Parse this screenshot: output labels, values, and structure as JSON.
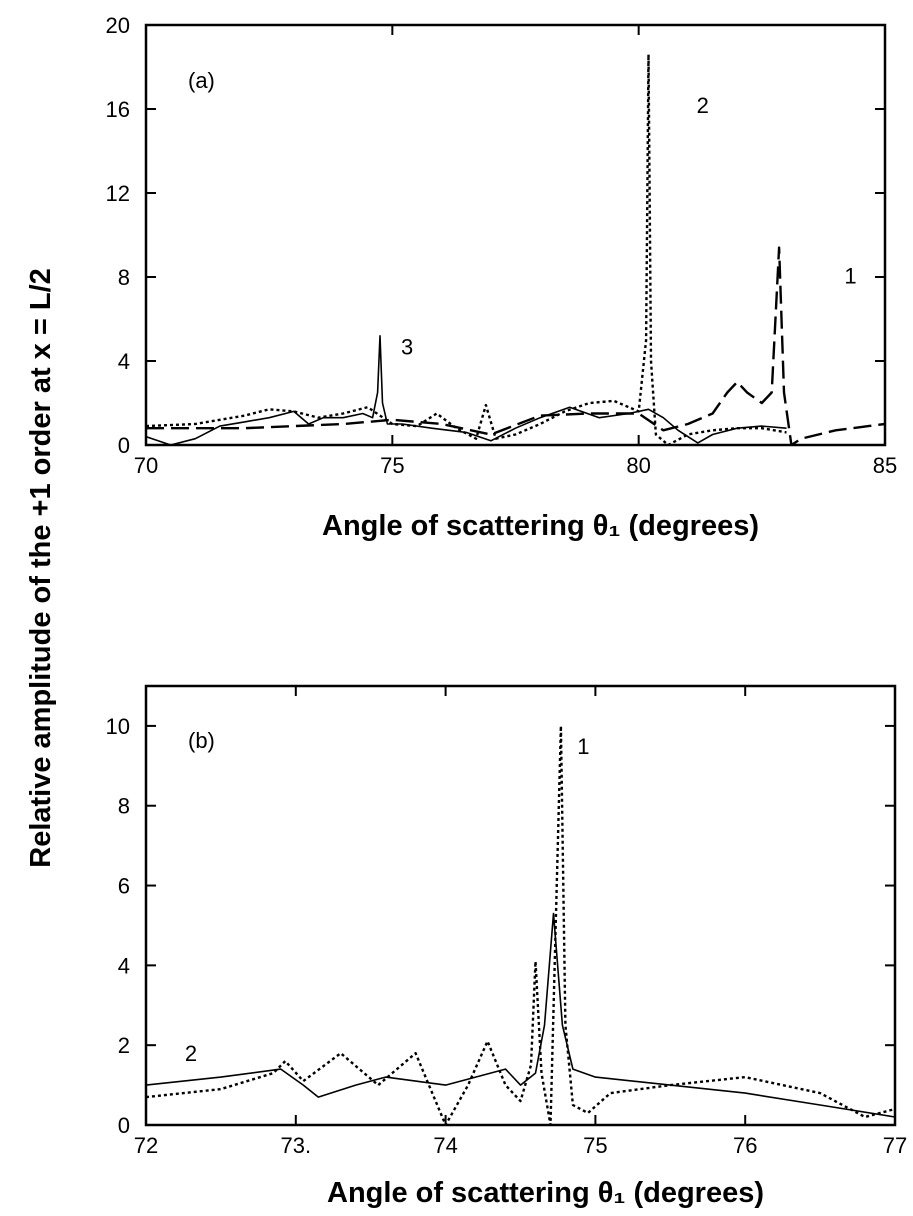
{
  "figure": {
    "ylabel": "Relative amplitude of the +1 order at x = L/2"
  },
  "chart_data": [
    {
      "type": "line",
      "panel_label": "(a)",
      "xlabel": "Angle of scattering θ₁ (degrees)",
      "xlim": [
        70,
        85
      ],
      "ylim": [
        0,
        20
      ],
      "x_ticks": [
        70,
        75,
        80,
        85
      ],
      "x_tick_labels": [
        "70",
        "75",
        "80",
        "85"
      ],
      "y_ticks": [
        0,
        4,
        8,
        12,
        16,
        20
      ],
      "y_tick_labels": [
        "0",
        "4",
        "8",
        "12",
        "16",
        "20"
      ],
      "grid": false,
      "series": [
        {
          "name": "3",
          "style": "solid",
          "x": [
            70,
            70.5,
            71,
            71.5,
            72,
            72.5,
            73,
            73.3,
            73.6,
            74,
            74.4,
            74.6,
            74.7,
            74.75,
            74.8,
            74.9,
            75.2,
            75.8,
            76.5,
            77,
            77.5,
            78,
            78.6,
            79.2,
            79.8,
            80.2,
            80.5,
            80.8,
            81.2,
            81.5,
            82,
            82.5,
            83
          ],
          "y": [
            0.4,
            0,
            0.3,
            0.9,
            1.1,
            1.3,
            1.6,
            1.0,
            1.3,
            1.3,
            1.5,
            1.3,
            2.5,
            5.2,
            2.0,
            1.0,
            1.0,
            0.8,
            0.6,
            0.2,
            0.8,
            1.3,
            1.8,
            1.3,
            1.5,
            1.7,
            1.3,
            0.7,
            0.1,
            0.5,
            0.8,
            0.9,
            0.8
          ]
        },
        {
          "name": "2",
          "style": "dotted",
          "x": [
            70,
            71,
            72,
            72.5,
            73,
            73.5,
            74,
            74.5,
            75,
            75.5,
            75.9,
            76.3,
            76.7,
            76.9,
            77.1,
            77.5,
            78,
            78.5,
            79,
            79.5,
            80,
            80.15,
            80.2,
            80.25,
            80.35,
            80.6,
            81,
            81.5,
            82,
            82.5,
            83
          ],
          "y": [
            0.9,
            1.0,
            1.4,
            1.7,
            1.6,
            1.3,
            1.5,
            1.8,
            1.0,
            0.9,
            1.5,
            0.8,
            0.3,
            1.9,
            0.3,
            0.5,
            1.0,
            1.6,
            2.0,
            2.1,
            1.6,
            5.0,
            18.6,
            4.0,
            0.5,
            0,
            0.5,
            0.7,
            0.8,
            0.8,
            0.6
          ]
        },
        {
          "name": "1",
          "style": "dashed",
          "x": [
            70,
            72,
            74,
            75,
            76,
            77,
            78,
            79,
            80,
            80.5,
            81,
            81.5,
            81.8,
            82,
            82.2,
            82.5,
            82.7,
            82.85,
            82.95,
            83.1,
            83.3,
            84,
            85
          ],
          "y": [
            0.8,
            0.8,
            1.0,
            1.2,
            1.0,
            0.5,
            1.4,
            1.5,
            1.5,
            0.7,
            1.0,
            1.5,
            2.5,
            3.0,
            2.5,
            2.0,
            2.5,
            9.4,
            2.5,
            0,
            0.3,
            0.7,
            1.0
          ]
        }
      ],
      "annotations": [
        {
          "text": "3",
          "x": 75.3,
          "y": 4.3
        },
        {
          "text": "2",
          "x": 81.3,
          "y": 15.8
        },
        {
          "text": "1",
          "x": 84.3,
          "y": 7.7
        }
      ]
    },
    {
      "type": "line",
      "panel_label": "(b)",
      "xlabel": "Angle of scattering θ₁ (degrees)",
      "xlim": [
        72,
        77
      ],
      "ylim": [
        0,
        11
      ],
      "x_ticks": [
        72,
        73,
        74,
        75,
        76,
        77
      ],
      "x_tick_labels": [
        "72",
        "73.",
        "74",
        "75",
        "76",
        "77"
      ],
      "y_ticks": [
        0,
        2,
        4,
        6,
        8,
        10
      ],
      "y_tick_labels": [
        "0",
        "2",
        "4",
        "6",
        "8",
        "10"
      ],
      "grid": false,
      "series": [
        {
          "name": "2",
          "style": "solid",
          "x": [
            72,
            72.5,
            72.9,
            73.05,
            73.15,
            73.4,
            73.6,
            73.8,
            74.0,
            74.2,
            74.4,
            74.5,
            74.6,
            74.66,
            74.72,
            74.78,
            74.85,
            75.0,
            75.5,
            76.0,
            76.5,
            77.0
          ],
          "y": [
            1.0,
            1.2,
            1.4,
            1.0,
            0.7,
            1.0,
            1.2,
            1.1,
            1.0,
            1.2,
            1.4,
            1.0,
            1.3,
            2.5,
            5.3,
            2.5,
            1.4,
            1.2,
            1.0,
            0.8,
            0.5,
            0.2
          ]
        },
        {
          "name": "1",
          "style": "dotted",
          "x": [
            72,
            72.5,
            72.85,
            72.93,
            73.05,
            73.3,
            73.55,
            73.8,
            74.0,
            74.15,
            74.28,
            74.4,
            74.5,
            74.57,
            74.6,
            74.64,
            74.7,
            74.77,
            74.8,
            74.85,
            74.95,
            75.1,
            75.5,
            76.0,
            76.5,
            76.8,
            77.0
          ],
          "y": [
            0.7,
            0.9,
            1.3,
            1.6,
            1.1,
            1.8,
            1.0,
            1.8,
            0,
            1.0,
            2.1,
            1.0,
            0.6,
            1.5,
            4.1,
            1.3,
            0,
            10.0,
            2.5,
            0.5,
            0.3,
            0.8,
            1.0,
            1.2,
            0.8,
            0.2,
            0.4
          ]
        }
      ],
      "annotations": [
        {
          "text": "1",
          "x": 74.92,
          "y": 9.3
        },
        {
          "text": "2",
          "x": 72.3,
          "y": 1.6
        }
      ]
    }
  ]
}
